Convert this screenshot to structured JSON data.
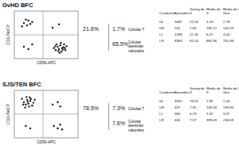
{
  "chart_data": [
    {
      "type": "scatter",
      "title": "GvHD BFC",
      "x_label": "CD56-APC",
      "y_label": "CD3-PerCP",
      "xlim": [
        0,
        100
      ],
      "ylim": [
        0,
        100
      ],
      "tick_labels": false,
      "gate": {
        "x": 45,
        "y": 50
      },
      "series": [
        {
          "color": "#1a1a1a",
          "x": [
            62,
            65,
            68,
            70,
            72,
            74,
            75,
            78,
            80,
            66,
            71,
            77,
            82,
            64,
            69,
            73,
            76,
            79,
            15,
            20,
            22,
            25,
            18,
            28,
            12,
            15,
            22,
            28,
            60,
            70
          ],
          "values": [
            22,
            18,
            25,
            20,
            28,
            15,
            22,
            30,
            18,
            30,
            12,
            24,
            26,
            26,
            16,
            33,
            19,
            22,
            75,
            70,
            80,
            73,
            82,
            77,
            68,
            25,
            20,
            30,
            65,
            72
          ]
        }
      ],
      "annotations": [
        {
          "label": "21.6%"
        },
        {
          "label": "1.7%",
          "text": "Células T"
        },
        {
          "label": "65.5%",
          "text": "Células asesinas naturales"
        }
      ],
      "table": {
        "columns": [
          "Cuadrante",
          "Episodios",
          "Gating de X",
          "Media de X",
          "Media de X Geo"
        ],
        "rows": [
          [
            "UL",
            "3087",
            "21.59",
            "4.29",
            "2.78"
          ],
          [
            "UR",
            "241",
            "1.69",
            "182.27",
            "105.29"
          ],
          [
            "LL",
            "1599",
            "11.18",
            "6.07",
            "4.40"
          ],
          [
            "LR",
            "9369",
            "65.54",
            "862.96",
            "755.38"
          ]
        ]
      }
    },
    {
      "type": "scatter",
      "title": "SJS/TEN BFC",
      "x_label": "CD56-APC",
      "y_label": "CD3-PerCP",
      "xlim": [
        0,
        100
      ],
      "ylim": [
        0,
        100
      ],
      "tick_labels": false,
      "gate": {
        "x": 45,
        "y": 50
      },
      "series": [
        {
          "color": "#1a1a1a",
          "x": [
            15,
            18,
            20,
            22,
            25,
            28,
            12,
            24,
            30,
            17,
            21,
            26,
            14,
            19,
            32,
            23,
            60,
            68,
            72,
            62,
            68,
            72,
            75,
            18,
            25
          ],
          "values": [
            75,
            70,
            80,
            72,
            78,
            68,
            82,
            85,
            74,
            64,
            76,
            82,
            70,
            86,
            80,
            66,
            70,
            75,
            66,
            25,
            20,
            28,
            18,
            25,
            20
          ]
        }
      ],
      "annotations": [
        {
          "label": "78.5%"
        },
        {
          "label": "7.3%",
          "text": "Células T"
        },
        {
          "label": "7.6%",
          "text": "Células asesinas naturales"
        }
      ],
      "table": {
        "columns": [
          "Cuadrante",
          "Episodios",
          "Gating de X",
          "Media de X",
          "Media de X Geo"
        ],
        "rows": [
          [
            "UL",
            "4565",
            "78.54",
            "1.86",
            "1.44"
          ],
          [
            "UR",
            "427",
            "7.35",
            "328.34",
            "193.96"
          ],
          [
            "LL",
            "360",
            "6.19",
            "3.45",
            "3.47"
          ],
          [
            "LR",
            "440",
            "7.57",
            "399.09",
            "234.69"
          ]
        ]
      }
    }
  ]
}
